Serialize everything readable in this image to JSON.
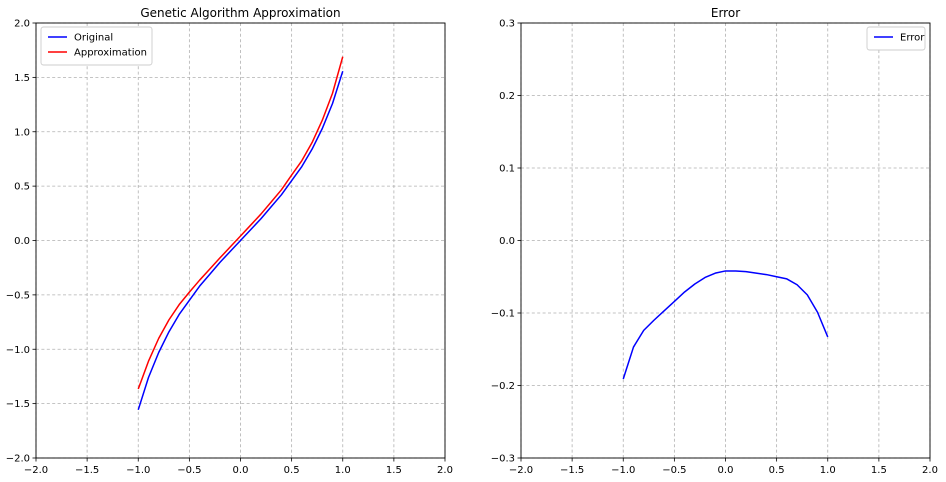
{
  "chart_data": [
    {
      "type": "line",
      "title": "Genetic Algorithm Approximation",
      "xlabel": "",
      "ylabel": "",
      "xlim": [
        -2.0,
        2.0
      ],
      "ylim": [
        -2.0,
        2.0
      ],
      "xticks": [
        "−2.0",
        "−1.5",
        "−1.0",
        "−0.5",
        "0.0",
        "0.5",
        "1.0",
        "1.5",
        "2.0"
      ],
      "yticks": [
        "−2.0",
        "−1.5",
        "−1.0",
        "−0.5",
        "0.0",
        "0.5",
        "1.0",
        "1.5",
        "2.0"
      ],
      "grid": true,
      "legend": "top-left",
      "x": [
        -1.0,
        -0.9,
        -0.8,
        -0.7,
        -0.6,
        -0.5,
        -0.4,
        -0.3,
        -0.2,
        -0.1,
        0.0,
        0.1,
        0.2,
        0.3,
        0.4,
        0.5,
        0.6,
        0.7,
        0.8,
        0.9,
        1.0
      ],
      "series": [
        {
          "name": "Original",
          "color": "#0000ff",
          "values": [
            -1.557,
            -1.26,
            -1.03,
            -0.84,
            -0.68,
            -0.55,
            -0.42,
            -0.31,
            -0.2,
            -0.1,
            0.0,
            0.1,
            0.2,
            0.31,
            0.42,
            0.55,
            0.68,
            0.84,
            1.03,
            1.26,
            1.557
          ]
        },
        {
          "name": "Approximation",
          "color": "#ff0000",
          "values": [
            -1.366,
            -1.11,
            -0.9,
            -0.73,
            -0.59,
            -0.475,
            -0.365,
            -0.262,
            -0.159,
            -0.059,
            0.041,
            0.142,
            0.243,
            0.354,
            0.466,
            0.602,
            0.734,
            0.901,
            1.106,
            1.354,
            1.69
          ]
        }
      ]
    },
    {
      "type": "line",
      "title": "Error",
      "xlabel": "",
      "ylabel": "",
      "xlim": [
        -2.0,
        2.0
      ],
      "ylim": [
        -0.3,
        0.3
      ],
      "xticks": [
        "−2.0",
        "−1.5",
        "−1.0",
        "−0.5",
        "0.0",
        "0.5",
        "1.0",
        "1.5",
        "2.0"
      ],
      "yticks": [
        "−0.3",
        "−0.2",
        "−0.1",
        "0.0",
        "0.1",
        "0.2",
        "0.3"
      ],
      "grid": true,
      "legend": "top-right",
      "x": [
        -1.0,
        -0.9,
        -0.8,
        -0.7,
        -0.6,
        -0.5,
        -0.4,
        -0.3,
        -0.2,
        -0.1,
        0.0,
        0.1,
        0.2,
        0.3,
        0.4,
        0.5,
        0.6,
        0.7,
        0.8,
        0.9,
        1.0
      ],
      "series": [
        {
          "name": "Error",
          "color": "#0000ff",
          "values": [
            -0.191,
            -0.147,
            -0.124,
            -0.11,
            -0.097,
            -0.084,
            -0.071,
            -0.06,
            -0.051,
            -0.045,
            -0.042,
            -0.042,
            -0.043,
            -0.045,
            -0.047,
            -0.05,
            -0.053,
            -0.061,
            -0.075,
            -0.099,
            -0.133
          ]
        }
      ]
    }
  ]
}
